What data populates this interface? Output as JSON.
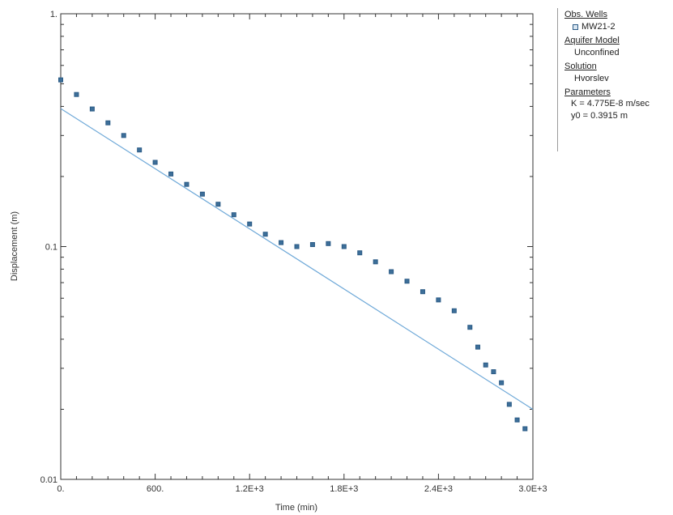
{
  "chart_data": {
    "type": "scatter",
    "xlabel": "Time (min)",
    "ylabel": "Displacement (m)",
    "xlim": [
      0,
      3000
    ],
    "ylim": [
      0.01,
      1
    ],
    "y_scale": "log",
    "grid": false,
    "x_ticks": [
      0,
      600,
      1200,
      1800,
      2400,
      3000
    ],
    "x_tick_labels": [
      "0.",
      "600.",
      "1.2E+3",
      "1.8E+3",
      "2.4E+3",
      "3.0E+3"
    ],
    "y_ticks": [
      0.01,
      0.1,
      1
    ],
    "y_tick_labels": [
      "0.01",
      "0.1",
      "1."
    ],
    "series": [
      {
        "name": "MW21-2",
        "kind": "observed",
        "marker": "square",
        "color": "#2b5b86",
        "x": [
          0,
          100,
          200,
          300,
          400,
          500,
          600,
          700,
          800,
          900,
          1000,
          1100,
          1200,
          1300,
          1400,
          1500,
          1600,
          1700,
          1800,
          1900,
          2000,
          2100,
          2200,
          2300,
          2400,
          2500,
          2600,
          2650,
          2700,
          2750,
          2800,
          2850,
          2900,
          2950
        ],
        "y": [
          0.52,
          0.45,
          0.39,
          0.34,
          0.3,
          0.26,
          0.23,
          0.205,
          0.185,
          0.168,
          0.152,
          0.137,
          0.125,
          0.113,
          0.104,
          0.1,
          0.102,
          0.103,
          0.1,
          0.094,
          0.086,
          0.078,
          0.071,
          0.064,
          0.059,
          0.053,
          0.045,
          0.037,
          0.031,
          0.029,
          0.026,
          0.021,
          0.018,
          0.0165
        ]
      },
      {
        "name": "Hvorslev",
        "kind": "fitted",
        "color": "#6fa9d8",
        "x": [
          0,
          3000
        ],
        "y": [
          0.3915,
          0.02
        ]
      }
    ]
  },
  "legend": {
    "obs_wells_heading": "Obs. Wells",
    "obs_well_name": "MW21-2",
    "aquifer_model_heading": "Aquifer Model",
    "aquifer_model_value": "Unconfined",
    "solution_heading": "Solution",
    "solution_value": "Hvorslev",
    "parameters_heading": "Parameters",
    "param_k": "K  = 4.775E-8 m/sec",
    "param_y0": "y0 = 0.3915 m"
  },
  "colors": {
    "observed": "#2b5b86",
    "fitted": "#6fa9d8",
    "axes": "#333333"
  }
}
